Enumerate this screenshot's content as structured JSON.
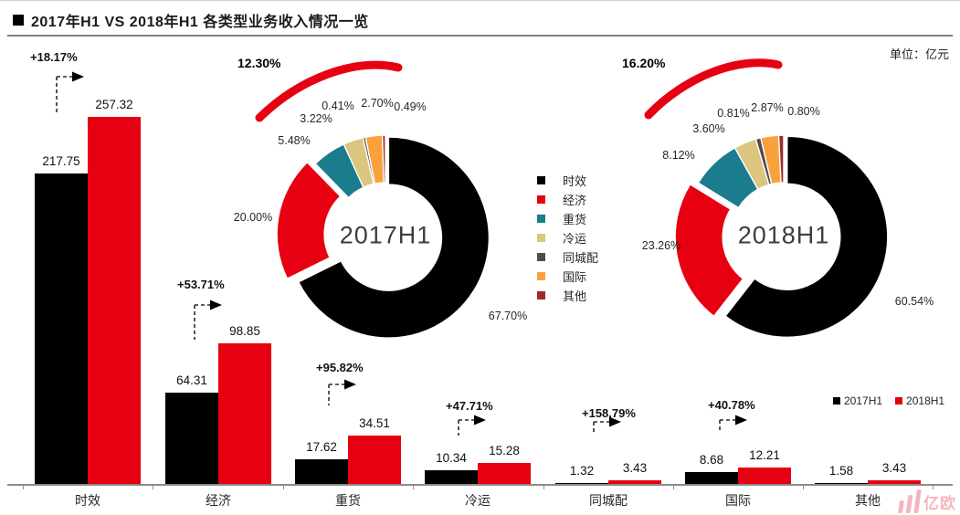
{
  "title": {
    "bullet": "■",
    "text": "2017年H1 VS 2018年H1 各类型业务收入情况一览"
  },
  "unit_label": "单位：亿元",
  "watermark": "亿欧",
  "legend_center": {
    "items": [
      {
        "label": "时效",
        "color": "#000000"
      },
      {
        "label": "经济",
        "color": "#E60012"
      },
      {
        "label": "重货",
        "color": "#1A7C8D"
      },
      {
        "label": "冷运",
        "color": "#DCC57F"
      },
      {
        "label": "同城配",
        "color": "#4F4C4C"
      },
      {
        "label": "国际",
        "color": "#F9A13A"
      },
      {
        "label": "其他",
        "color": "#9E2B25"
      }
    ]
  },
  "legend_bottom": {
    "items": [
      {
        "label": "2017H1",
        "color": "#000000"
      },
      {
        "label": "2018H1",
        "color": "#E60012"
      }
    ]
  },
  "chart_data": [
    {
      "type": "bar",
      "title": "2017年H1 VS 2018年H1 各类型业务收入情况一览",
      "unit": "亿元",
      "categories": [
        "时效",
        "经济",
        "重货",
        "冷运",
        "同城配",
        "国际",
        "其他"
      ],
      "series": [
        {
          "name": "2017H1",
          "color": "#000000",
          "values": [
            217.75,
            64.31,
            17.62,
            10.34,
            1.32,
            8.68,
            1.58
          ]
        },
        {
          "name": "2018H1",
          "color": "#E60012",
          "values": [
            257.32,
            98.85,
            34.51,
            15.28,
            3.43,
            12.21,
            3.43
          ]
        }
      ],
      "growth_labels": [
        "+18.17%",
        "+53.71%",
        "+95.82%",
        "+47.71%",
        "+158.79%",
        "+40.78%",
        null
      ],
      "ylim": [
        0,
        260
      ],
      "grid": false,
      "legend_position": "right"
    },
    {
      "type": "pie",
      "subtype": "donut",
      "title": "2017H1",
      "growth_label": "12.30%",
      "slices": [
        {
          "label": "时效",
          "value": 67.7,
          "color": "#000000"
        },
        {
          "label": "经济",
          "value": 20.0,
          "color": "#E60012"
        },
        {
          "label": "重货",
          "value": 5.48,
          "color": "#1A7C8D"
        },
        {
          "label": "冷运",
          "value": 3.22,
          "color": "#DCC57F"
        },
        {
          "label": "同城配",
          "value": 0.41,
          "color": "#4F4C4C"
        },
        {
          "label": "国际",
          "value": 2.7,
          "color": "#F9A13A"
        },
        {
          "label": "其他",
          "value": 0.49,
          "color": "#9E2B25"
        }
      ]
    },
    {
      "type": "pie",
      "subtype": "donut",
      "title": "2018H1",
      "growth_label": "16.20%",
      "slices": [
        {
          "label": "时效",
          "value": 60.54,
          "color": "#000000"
        },
        {
          "label": "经济",
          "value": 23.26,
          "color": "#E60012"
        },
        {
          "label": "重货",
          "value": 8.12,
          "color": "#1A7C8D"
        },
        {
          "label": "冷运",
          "value": 3.6,
          "color": "#DCC57F"
        },
        {
          "label": "同城配",
          "value": 0.81,
          "color": "#4F4C4C"
        },
        {
          "label": "国际",
          "value": 2.87,
          "color": "#F9A13A"
        },
        {
          "label": "其他",
          "value": 0.8,
          "color": "#9E2B25"
        }
      ]
    }
  ]
}
